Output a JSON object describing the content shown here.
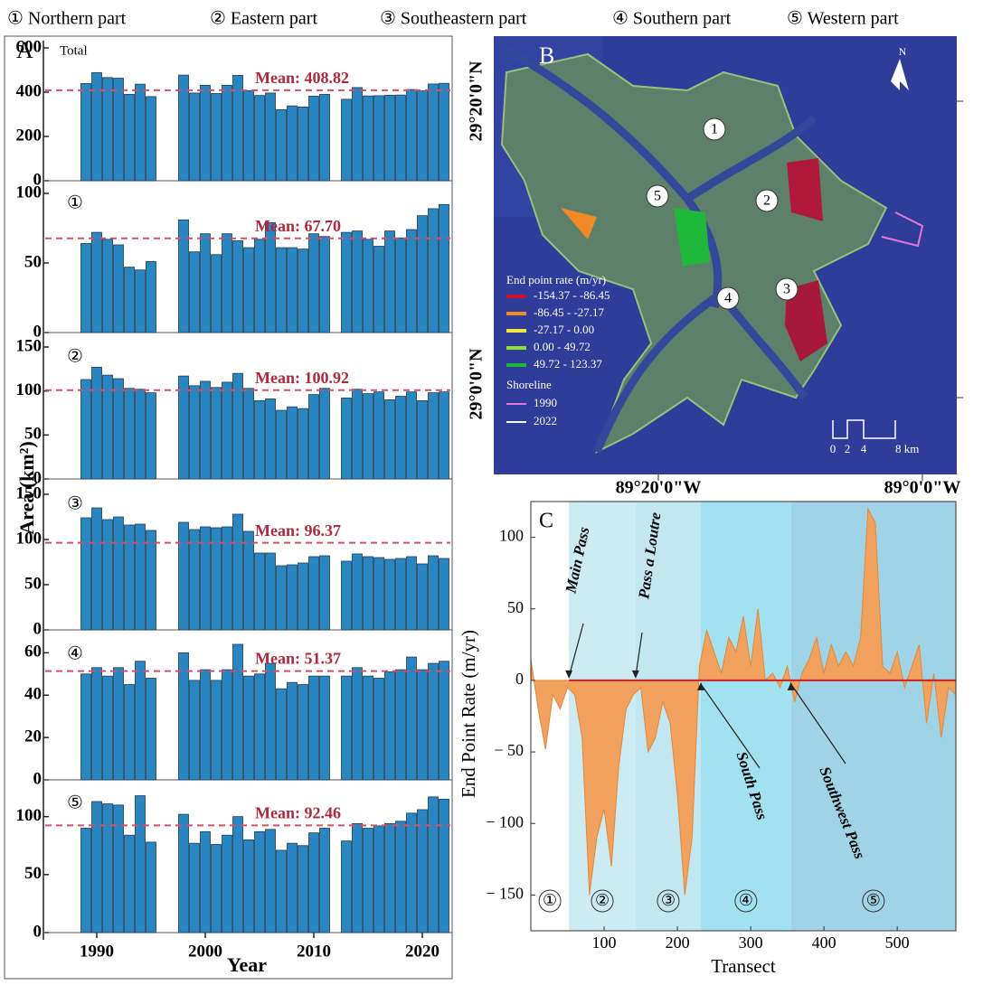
{
  "header": {
    "items": [
      "① Northern part",
      "② Eastern part",
      "③ Southeastern part",
      "④ Southern part",
      "⑤ Western part"
    ]
  },
  "panel_letters": [
    "A",
    "B",
    "C"
  ],
  "chart_data": [
    {
      "type": "bar",
      "panel_label": "Total",
      "x": [
        1989,
        1990,
        1991,
        1992,
        1993,
        1994,
        1995,
        1998,
        1999,
        2000,
        2001,
        2002,
        2003,
        2004,
        2005,
        2006,
        2007,
        2008,
        2009,
        2010,
        2011,
        2013,
        2014,
        2015,
        2016,
        2017,
        2018,
        2019,
        2020,
        2021,
        2022
      ],
      "values": [
        439,
        488,
        466,
        463,
        390,
        436,
        380,
        477,
        396,
        431,
        394,
        431,
        476,
        407,
        385,
        396,
        321,
        338,
        333,
        382,
        390,
        368,
        421,
        383,
        384,
        386,
        387,
        412,
        406,
        437,
        440
      ],
      "mean": 408.82,
      "mean_label": "Mean: 408.82",
      "ylim": [
        0,
        600
      ],
      "yticks": [
        0,
        200,
        400,
        600
      ],
      "color": "#2a86c0"
    },
    {
      "type": "bar",
      "panel_label": "①",
      "x": [
        1989,
        1990,
        1991,
        1992,
        1993,
        1994,
        1995,
        1998,
        1999,
        2000,
        2001,
        2002,
        2003,
        2004,
        2005,
        2006,
        2007,
        2008,
        2009,
        2010,
        2011,
        2013,
        2014,
        2015,
        2016,
        2017,
        2018,
        2019,
        2020,
        2021,
        2022
      ],
      "values": [
        64,
        72,
        67,
        63,
        47,
        45,
        51,
        81,
        58,
        71,
        56,
        71,
        66,
        61,
        67,
        79,
        61,
        61,
        60,
        71,
        69,
        72,
        73,
        67,
        62,
        73,
        68,
        74,
        84,
        89,
        92
      ],
      "mean": 67.7,
      "mean_label": "Mean: 67.70",
      "ylim": [
        0,
        100
      ],
      "yticks": [
        0,
        50,
        100
      ],
      "color": "#2a86c0"
    },
    {
      "type": "bar",
      "panel_label": "②",
      "x": [
        1989,
        1990,
        1991,
        1992,
        1993,
        1994,
        1995,
        1998,
        1999,
        2000,
        2001,
        2002,
        2003,
        2004,
        2005,
        2006,
        2007,
        2008,
        2009,
        2010,
        2011,
        2013,
        2014,
        2015,
        2016,
        2017,
        2018,
        2019,
        2020,
        2021,
        2022
      ],
      "values": [
        113,
        127,
        118,
        114,
        103,
        102,
        98,
        117,
        106,
        111,
        104,
        110,
        120,
        103,
        89,
        91,
        78,
        82,
        80,
        96,
        103,
        92,
        102,
        97,
        99,
        90,
        94,
        99,
        89,
        98,
        99
      ],
      "mean": 100.92,
      "mean_label": "Mean: 100.92",
      "ylim": [
        0,
        150
      ],
      "yticks": [
        0,
        50,
        100,
        150
      ],
      "color": "#2a86c0"
    },
    {
      "type": "bar",
      "panel_label": "③",
      "x": [
        1989,
        1990,
        1991,
        1992,
        1993,
        1994,
        1995,
        1998,
        1999,
        2000,
        2001,
        2002,
        2003,
        2004,
        2005,
        2006,
        2007,
        2008,
        2009,
        2010,
        2011,
        2013,
        2014,
        2015,
        2016,
        2017,
        2018,
        2019,
        2020,
        2021,
        2022
      ],
      "values": [
        124,
        135,
        122,
        125,
        116,
        117,
        110,
        119,
        111,
        114,
        113,
        114,
        128,
        109,
        85,
        85,
        71,
        72,
        74,
        81,
        82,
        76,
        84,
        81,
        80,
        78,
        79,
        81,
        73,
        82,
        79
      ],
      "mean": 96.37,
      "mean_label": "Mean: 96.37",
      "ylim": [
        0,
        150
      ],
      "yticks": [
        0,
        50,
        100,
        150
      ],
      "color": "#2a86c0"
    },
    {
      "type": "bar",
      "panel_label": "④",
      "x": [
        1989,
        1990,
        1991,
        1992,
        1993,
        1994,
        1995,
        1998,
        1999,
        2000,
        2001,
        2002,
        2003,
        2004,
        2005,
        2006,
        2007,
        2008,
        2009,
        2010,
        2011,
        2013,
        2014,
        2015,
        2016,
        2017,
        2018,
        2019,
        2020,
        2021,
        2022
      ],
      "values": [
        50,
        53,
        49,
        53,
        45,
        56,
        48,
        60,
        47,
        52,
        47,
        52,
        64,
        49,
        50,
        55,
        43,
        46,
        45,
        49,
        49,
        49,
        53,
        49,
        48,
        51,
        52,
        58,
        52,
        55,
        56
      ],
      "mean": 51.37,
      "mean_label": "Mean: 51.37",
      "ylim": [
        0,
        64
      ],
      "yticks": [
        0,
        20,
        40,
        60
      ],
      "color": "#2a86c0"
    },
    {
      "type": "bar",
      "panel_label": "⑤",
      "x": [
        1989,
        1990,
        1991,
        1992,
        1993,
        1994,
        1995,
        1998,
        1999,
        2000,
        2001,
        2002,
        2003,
        2004,
        2005,
        2006,
        2007,
        2008,
        2009,
        2010,
        2011,
        2013,
        2014,
        2015,
        2016,
        2017,
        2018,
        2019,
        2020,
        2021,
        2022
      ],
      "values": [
        90,
        113,
        111,
        110,
        84,
        118,
        78,
        102,
        77,
        87,
        76,
        84,
        100,
        80,
        87,
        89,
        71,
        77,
        75,
        86,
        90,
        79,
        94,
        90,
        92,
        94,
        96,
        103,
        106,
        117,
        115
      ],
      "mean": 92.46,
      "mean_label": "Mean: 92.46",
      "ylim": [
        0,
        120
      ],
      "yticks": [
        0,
        50,
        100
      ],
      "color": "#2a86c0",
      "xlim": [
        1985,
        2023
      ],
      "xticks": [
        1990,
        2000,
        2010,
        2020
      ],
      "xlabel": "Year",
      "ylabel": "Area (km²)"
    },
    {
      "type": "area",
      "x": [
        0,
        10,
        20,
        30,
        40,
        50,
        60,
        70,
        80,
        90,
        100,
        110,
        120,
        130,
        140,
        150,
        160,
        170,
        180,
        190,
        200,
        210,
        220,
        230,
        240,
        250,
        260,
        270,
        280,
        290,
        300,
        310,
        320,
        330,
        340,
        350,
        360,
        370,
        380,
        390,
        400,
        410,
        420,
        430,
        440,
        450,
        460,
        470,
        480,
        490,
        500,
        510,
        520,
        530,
        540,
        550,
        560,
        570,
        580
      ],
      "values": [
        15,
        -20,
        -48,
        -10,
        -20,
        -5,
        -10,
        -40,
        -150,
        -110,
        -90,
        -130,
        -60,
        -20,
        -10,
        -5,
        -50,
        -40,
        -15,
        -30,
        -80,
        -150,
        -110,
        10,
        35,
        20,
        5,
        30,
        20,
        45,
        10,
        50,
        0,
        5,
        -5,
        10,
        -15,
        5,
        15,
        30,
        5,
        25,
        10,
        20,
        10,
        30,
        120,
        110,
        10,
        5,
        20,
        -5,
        10,
        25,
        -30,
        5,
        -40,
        -5,
        -10
      ],
      "color": "#f2a25f",
      "xlim": [
        0,
        580
      ],
      "xticks": [
        100,
        200,
        300,
        400,
        500
      ],
      "ylim": [
        -175,
        125
      ],
      "yticks": [
        {
          "value": -150,
          "label": "− 150"
        },
        {
          "value": -100,
          "label": "− 100"
        },
        {
          "value": -50,
          "label": "− 50"
        },
        0,
        50,
        100
      ],
      "xlabel": "Transect",
      "ylabel": "End Point Rate (m/yr)",
      "regions": [
        {
          "label": "①",
          "start": 0,
          "end": 52,
          "color": "#ffffff"
        },
        {
          "label": "②",
          "start": 52,
          "end": 143,
          "color": "#cdebf3"
        },
        {
          "label": "③",
          "start": 143,
          "end": 232,
          "color": "#c3e7f1"
        },
        {
          "label": "④",
          "start": 232,
          "end": 355,
          "color": "#a2e1ef"
        },
        {
          "label": "⑤",
          "start": 355,
          "end": 580,
          "color": "#a0d3e5"
        }
      ],
      "annotations": [
        {
          "text": "Main Pass",
          "x": 52
        },
        {
          "text": "Pass a Loutre",
          "x": 143
        },
        {
          "text": "South Pass",
          "x": 232
        },
        {
          "text": "Southwest Pass",
          "x": 355
        }
      ]
    }
  ],
  "map": {
    "lat_labels": [
      "29°20'0\"N",
      "29°0'0\"N"
    ],
    "lon_labels": [
      "89°20'0\"W",
      "89°0'0\"W"
    ],
    "north": "N",
    "zones": [
      "1",
      "2",
      "3",
      "4",
      "5"
    ],
    "legend_title": "End point rate (m/yr)",
    "legend": [
      {
        "label": "-154.37 - -86.45",
        "color": "#c8102e"
      },
      {
        "label": "-86.45 - -27.17",
        "color": "#f08a24"
      },
      {
        "label": "-27.17 - 0.00",
        "color": "#f5e642"
      },
      {
        "label": "0.00 - 49.72",
        "color": "#8de02c"
      },
      {
        "label": "49.72 - 123.37",
        "color": "#1fb83a"
      }
    ],
    "shoreline_title": "Shoreline",
    "shorelines": [
      {
        "label": "1990",
        "color": "#e673d8"
      },
      {
        "label": "2022",
        "color": "#ffffff"
      }
    ],
    "scale": [
      "0",
      "2",
      "4",
      "8 km"
    ]
  }
}
